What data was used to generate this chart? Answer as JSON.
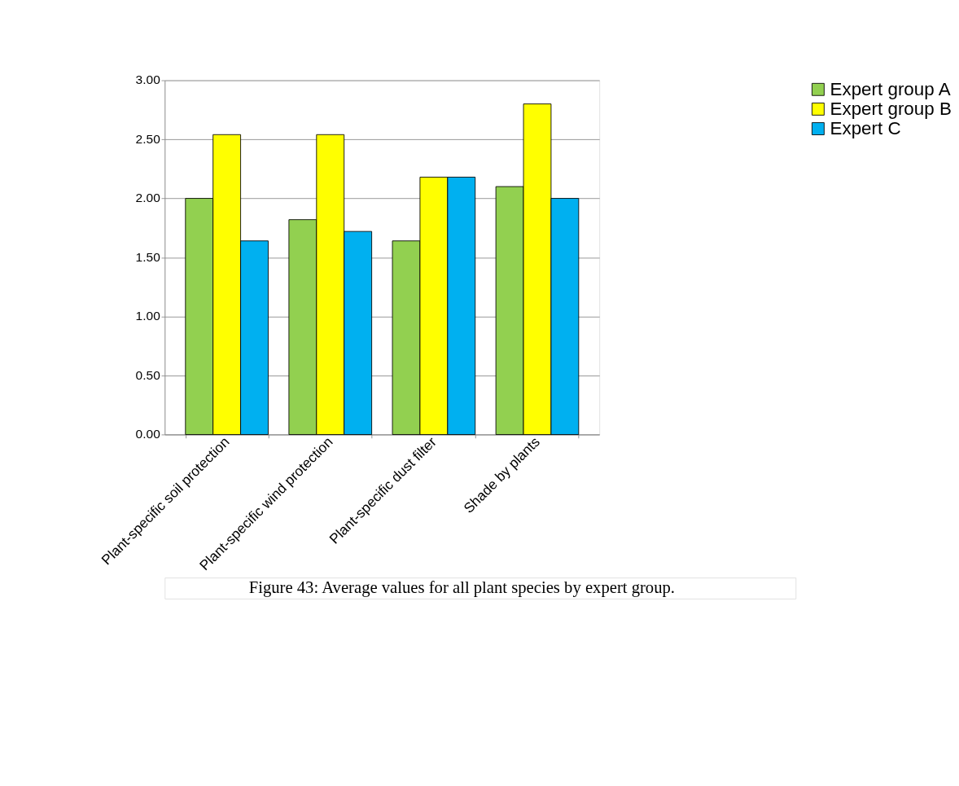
{
  "chart_data": {
    "type": "bar",
    "categories": [
      "Plant-specific soil protection",
      "Plant-specific wind protection",
      "Plant-specific dust filter",
      "Shade by plants"
    ],
    "series": [
      {
        "name": "Expert group A",
        "color": "#92d050",
        "values": [
          2.0,
          1.82,
          1.64,
          2.1
        ]
      },
      {
        "name": "Expert group B",
        "color": "#ffff00",
        "values": [
          2.54,
          2.54,
          2.18,
          2.8
        ]
      },
      {
        "name": "Expert C",
        "color": "#00b0f0",
        "values": [
          1.64,
          1.72,
          2.18,
          2.0
        ]
      }
    ],
    "ylim": [
      0,
      3
    ],
    "yticks": [
      {
        "value": 0,
        "label": "0.00"
      },
      {
        "value": 0.5,
        "label": "0.50"
      },
      {
        "value": 1,
        "label": "1.00"
      },
      {
        "value": 1.5,
        "label": "1.50"
      },
      {
        "value": 2,
        "label": "2.00"
      },
      {
        "value": 2.5,
        "label": "2.50"
      },
      {
        "value": 3,
        "label": "3.00"
      }
    ],
    "grid": "y",
    "legend": "right",
    "annotations": [
      "Figure 43:      Average values for all plant species by expert group."
    ]
  }
}
